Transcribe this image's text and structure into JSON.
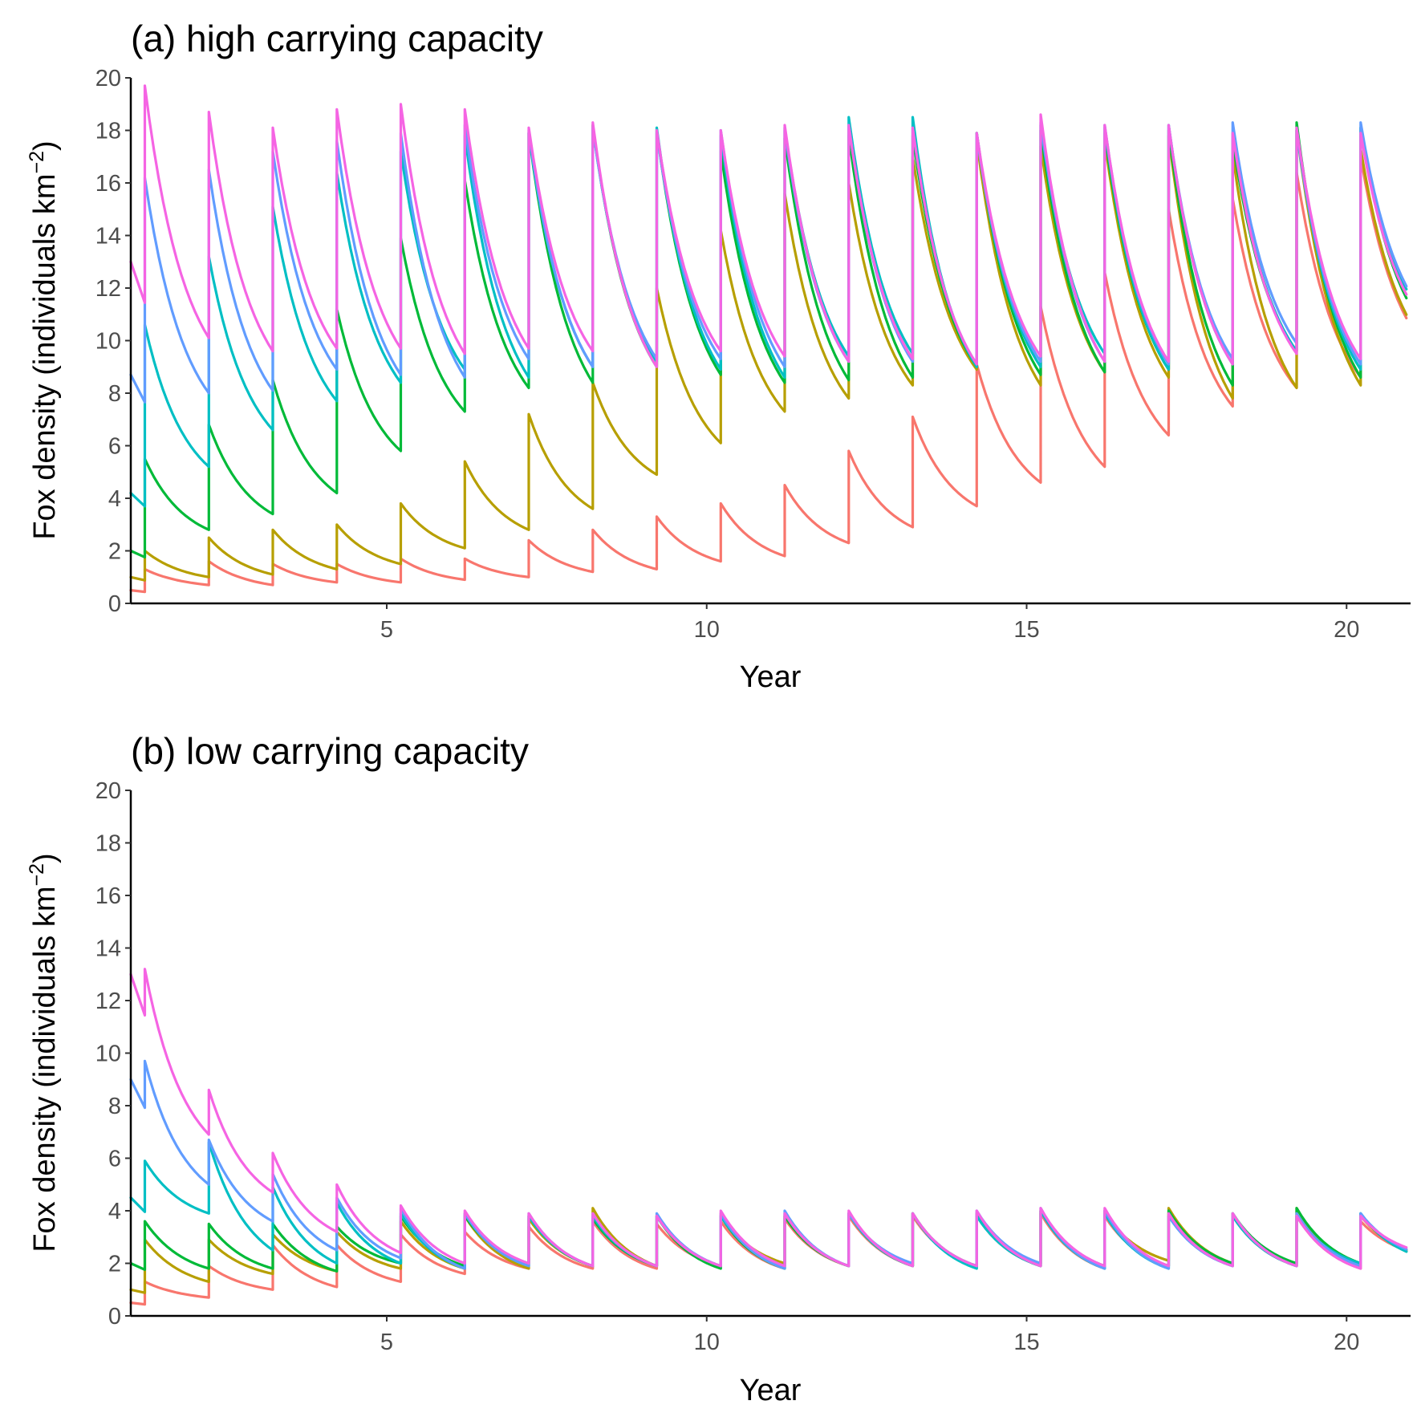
{
  "chart_data": [
    {
      "type": "line",
      "title": "(a) high carrying capacity",
      "xlabel": "Year",
      "ylabel": {
        "main": "Fox density (individuals km",
        "superscript": "−2",
        "close": ")"
      },
      "xlim": [
        1,
        21
      ],
      "ylim": [
        0,
        20
      ],
      "xticks": [
        5,
        10,
        15,
        20
      ],
      "yticks": [
        0,
        2,
        4,
        6,
        8,
        10,
        12,
        14,
        16,
        18,
        20
      ],
      "grid": false,
      "legend": "none",
      "x": [
        1,
        2,
        3,
        4,
        5,
        6,
        7,
        8,
        9,
        10,
        11,
        12,
        13,
        14,
        15,
        16,
        17,
        18,
        19,
        20,
        21
      ],
      "series": [
        {
          "color": "#F8766D",
          "values": [
            0.5,
            0.7,
            0.7,
            0.8,
            0.8,
            0.9,
            1.0,
            1.2,
            1.3,
            1.6,
            1.8,
            2.3,
            2.9,
            3.7,
            4.6,
            5.2,
            6.4,
            7.5,
            8.2,
            8.6,
            9.8
          ],
          "peaks": [
            1.3,
            1.6,
            1.5,
            1.5,
            1.7,
            1.7,
            2.4,
            2.8,
            3.3,
            3.8,
            4.5,
            5.8,
            7.1,
            9.1,
            11.3,
            12.6,
            15.0,
            15.4,
            16.4,
            17.0,
            null
          ]
        },
        {
          "color": "#B79F00",
          "values": [
            1.0,
            1.0,
            1.1,
            1.3,
            1.5,
            2.1,
            2.8,
            3.6,
            4.9,
            6.1,
            7.3,
            7.8,
            8.3,
            8.9,
            8.3,
            8.8,
            8.6,
            7.8,
            8.2,
            8.3,
            9.9
          ],
          "peaks": [
            2.0,
            2.5,
            2.8,
            3.0,
            3.8,
            5.4,
            7.2,
            8.4,
            12.0,
            14.2,
            15.6,
            16.0,
            17.0,
            17.6,
            17.4,
            17.6,
            17.8,
            17.1,
            18.0,
            17.3,
            null
          ]
        },
        {
          "color": "#00BA38",
          "values": [
            2.0,
            2.8,
            3.4,
            4.2,
            5.8,
            7.3,
            8.2,
            8.4,
            9.0,
            8.7,
            8.4,
            8.5,
            8.6,
            9.0,
            8.7,
            8.8,
            8.9,
            8.3,
            9.6,
            8.6,
            10.5
          ],
          "peaks": [
            5.5,
            6.8,
            8.5,
            11.2,
            13.9,
            16.1,
            17.9,
            18.2,
            18.0,
            17.2,
            17.7,
            17.8,
            17.8,
            17.9,
            18.0,
            17.9,
            18.0,
            17.6,
            18.3,
            18.1,
            null
          ]
        },
        {
          "color": "#00BFC4",
          "values": [
            4.2,
            5.2,
            6.6,
            7.7,
            8.4,
            8.9,
            8.6,
            9.0,
            9.2,
            8.9,
            8.6,
            9.4,
            9.5,
            9.0,
            9.0,
            9.5,
            8.9,
            9.1,
            9.6,
            8.9,
            10.9
          ],
          "peaks": [
            10.6,
            13.2,
            15.1,
            16.4,
            17.2,
            17.8,
            17.9,
            18.1,
            18.1,
            17.8,
            18.1,
            18.5,
            18.5,
            17.9,
            18.2,
            18.1,
            18.2,
            17.9,
            18.0,
            18.1,
            null
          ]
        },
        {
          "color": "#619CFF",
          "values": [
            8.7,
            8.0,
            8.1,
            8.9,
            8.7,
            8.6,
            9.3,
            9.0,
            9.3,
            9.3,
            9.0,
            9.2,
            9.2,
            9.1,
            9.2,
            9.2,
            9.1,
            9.3,
            9.9,
            9.1,
            11.0
          ],
          "peaks": [
            16.2,
            16.5,
            17.2,
            17.6,
            17.9,
            18.2,
            18.0,
            18.1,
            17.9,
            18.0,
            18.0,
            18.2,
            18.1,
            17.8,
            18.3,
            18.2,
            18.2,
            18.3,
            18.0,
            18.3,
            null
          ]
        },
        {
          "color": "#F564E3",
          "values": [
            13.0,
            10.1,
            9.6,
            9.7,
            9.7,
            9.5,
            9.7,
            9.6,
            9.0,
            9.6,
            9.4,
            9.2,
            9.3,
            9.1,
            9.4,
            9.2,
            9.2,
            9.1,
            9.5,
            9.3,
            10.7
          ],
          "peaks": [
            19.7,
            18.7,
            18.1,
            18.8,
            19.0,
            18.8,
            18.1,
            18.3,
            18.0,
            18.0,
            18.2,
            18.2,
            18.1,
            17.9,
            18.6,
            18.2,
            18.2,
            17.9,
            18.1,
            17.9,
            null
          ]
        }
      ]
    },
    {
      "type": "line",
      "title": "(b) low carrying capacity",
      "xlabel": "Year",
      "ylabel": {
        "main": "Fox density (individuals km",
        "superscript": "−2",
        "close": ")"
      },
      "xlim": [
        1,
        21
      ],
      "ylim": [
        0,
        20
      ],
      "xticks": [
        5,
        10,
        15,
        20
      ],
      "yticks": [
        0,
        2,
        4,
        6,
        8,
        10,
        12,
        14,
        16,
        18,
        20
      ],
      "grid": false,
      "legend": "none",
      "x": [
        1,
        2,
        3,
        4,
        5,
        6,
        7,
        8,
        9,
        10,
        11,
        12,
        13,
        14,
        15,
        16,
        17,
        18,
        19,
        20,
        21
      ],
      "series": [
        {
          "color": "#F8766D",
          "values": [
            0.5,
            0.7,
            1.0,
            1.1,
            1.3,
            1.6,
            1.8,
            1.8,
            1.8,
            1.9,
            1.8,
            1.9,
            1.9,
            1.9,
            1.9,
            1.8,
            1.9,
            2.0,
            1.9,
            1.8,
            2.3
          ],
          "peaks": [
            1.3,
            1.9,
            2.7,
            2.7,
            3.1,
            3.2,
            3.4,
            3.6,
            3.5,
            3.6,
            3.7,
            3.8,
            3.8,
            3.8,
            3.9,
            3.8,
            3.9,
            3.8,
            3.8,
            3.6,
            null
          ]
        },
        {
          "color": "#B79F00",
          "values": [
            1.0,
            1.3,
            1.6,
            1.7,
            1.8,
            1.8,
            1.8,
            1.9,
            1.9,
            1.9,
            2.0,
            1.9,
            1.9,
            1.9,
            2.0,
            1.9,
            2.1,
            2.0,
            1.9,
            1.9,
            2.3
          ],
          "peaks": [
            2.9,
            2.9,
            3.1,
            3.2,
            3.6,
            3.8,
            3.7,
            4.1,
            3.8,
            3.8,
            3.8,
            3.9,
            3.9,
            3.9,
            4.0,
            3.9,
            4.1,
            3.9,
            4.1,
            3.8,
            null
          ]
        },
        {
          "color": "#00BA38",
          "values": [
            2.0,
            1.8,
            1.8,
            1.7,
            2.0,
            1.9,
            2.0,
            1.9,
            1.9,
            1.8,
            1.8,
            1.9,
            1.9,
            1.9,
            1.9,
            1.9,
            1.9,
            2.0,
            2.0,
            2.0,
            2.2
          ],
          "peaks": [
            3.6,
            3.5,
            3.5,
            3.4,
            3.8,
            3.8,
            3.8,
            3.7,
            3.8,
            3.8,
            3.8,
            3.9,
            3.9,
            3.9,
            4.0,
            4.0,
            4.0,
            3.9,
            4.1,
            3.9,
            null
          ]
        },
        {
          "color": "#00BFC4",
          "values": [
            4.5,
            3.9,
            2.5,
            2.0,
            2.0,
            1.8,
            1.9,
            1.9,
            1.9,
            1.9,
            1.9,
            1.9,
            1.9,
            1.8,
            1.9,
            1.8,
            1.8,
            1.9,
            1.9,
            2.0,
            2.2
          ],
          "peaks": [
            5.9,
            6.6,
            4.9,
            4.3,
            3.9,
            3.9,
            3.8,
            3.8,
            3.8,
            3.8,
            3.9,
            3.9,
            3.9,
            3.8,
            4.0,
            3.9,
            3.8,
            3.8,
            3.8,
            3.9,
            null
          ]
        },
        {
          "color": "#619CFF",
          "values": [
            9.0,
            5.0,
            3.6,
            2.5,
            2.2,
            1.8,
            1.9,
            1.9,
            1.9,
            1.9,
            1.8,
            1.9,
            2.0,
            1.9,
            2.0,
            1.8,
            1.8,
            1.9,
            1.9,
            1.9,
            2.3
          ],
          "peaks": [
            9.7,
            6.7,
            5.4,
            4.5,
            4.1,
            3.9,
            3.9,
            3.9,
            3.9,
            3.9,
            4.0,
            3.9,
            3.9,
            4.0,
            4.1,
            4.0,
            3.8,
            3.9,
            3.9,
            3.9,
            null
          ]
        },
        {
          "color": "#F564E3",
          "values": [
            13.0,
            6.9,
            4.7,
            3.2,
            2.4,
            2.0,
            2.0,
            1.9,
            1.9,
            1.9,
            1.9,
            1.9,
            1.9,
            1.9,
            1.9,
            1.9,
            1.9,
            1.9,
            1.9,
            1.8,
            2.4
          ],
          "peaks": [
            13.2,
            8.6,
            6.2,
            5.0,
            4.2,
            4.0,
            3.9,
            3.9,
            3.8,
            4.0,
            3.9,
            4.0,
            3.9,
            4.0,
            4.1,
            4.1,
            3.9,
            3.9,
            3.8,
            3.8,
            null
          ]
        }
      ]
    }
  ]
}
